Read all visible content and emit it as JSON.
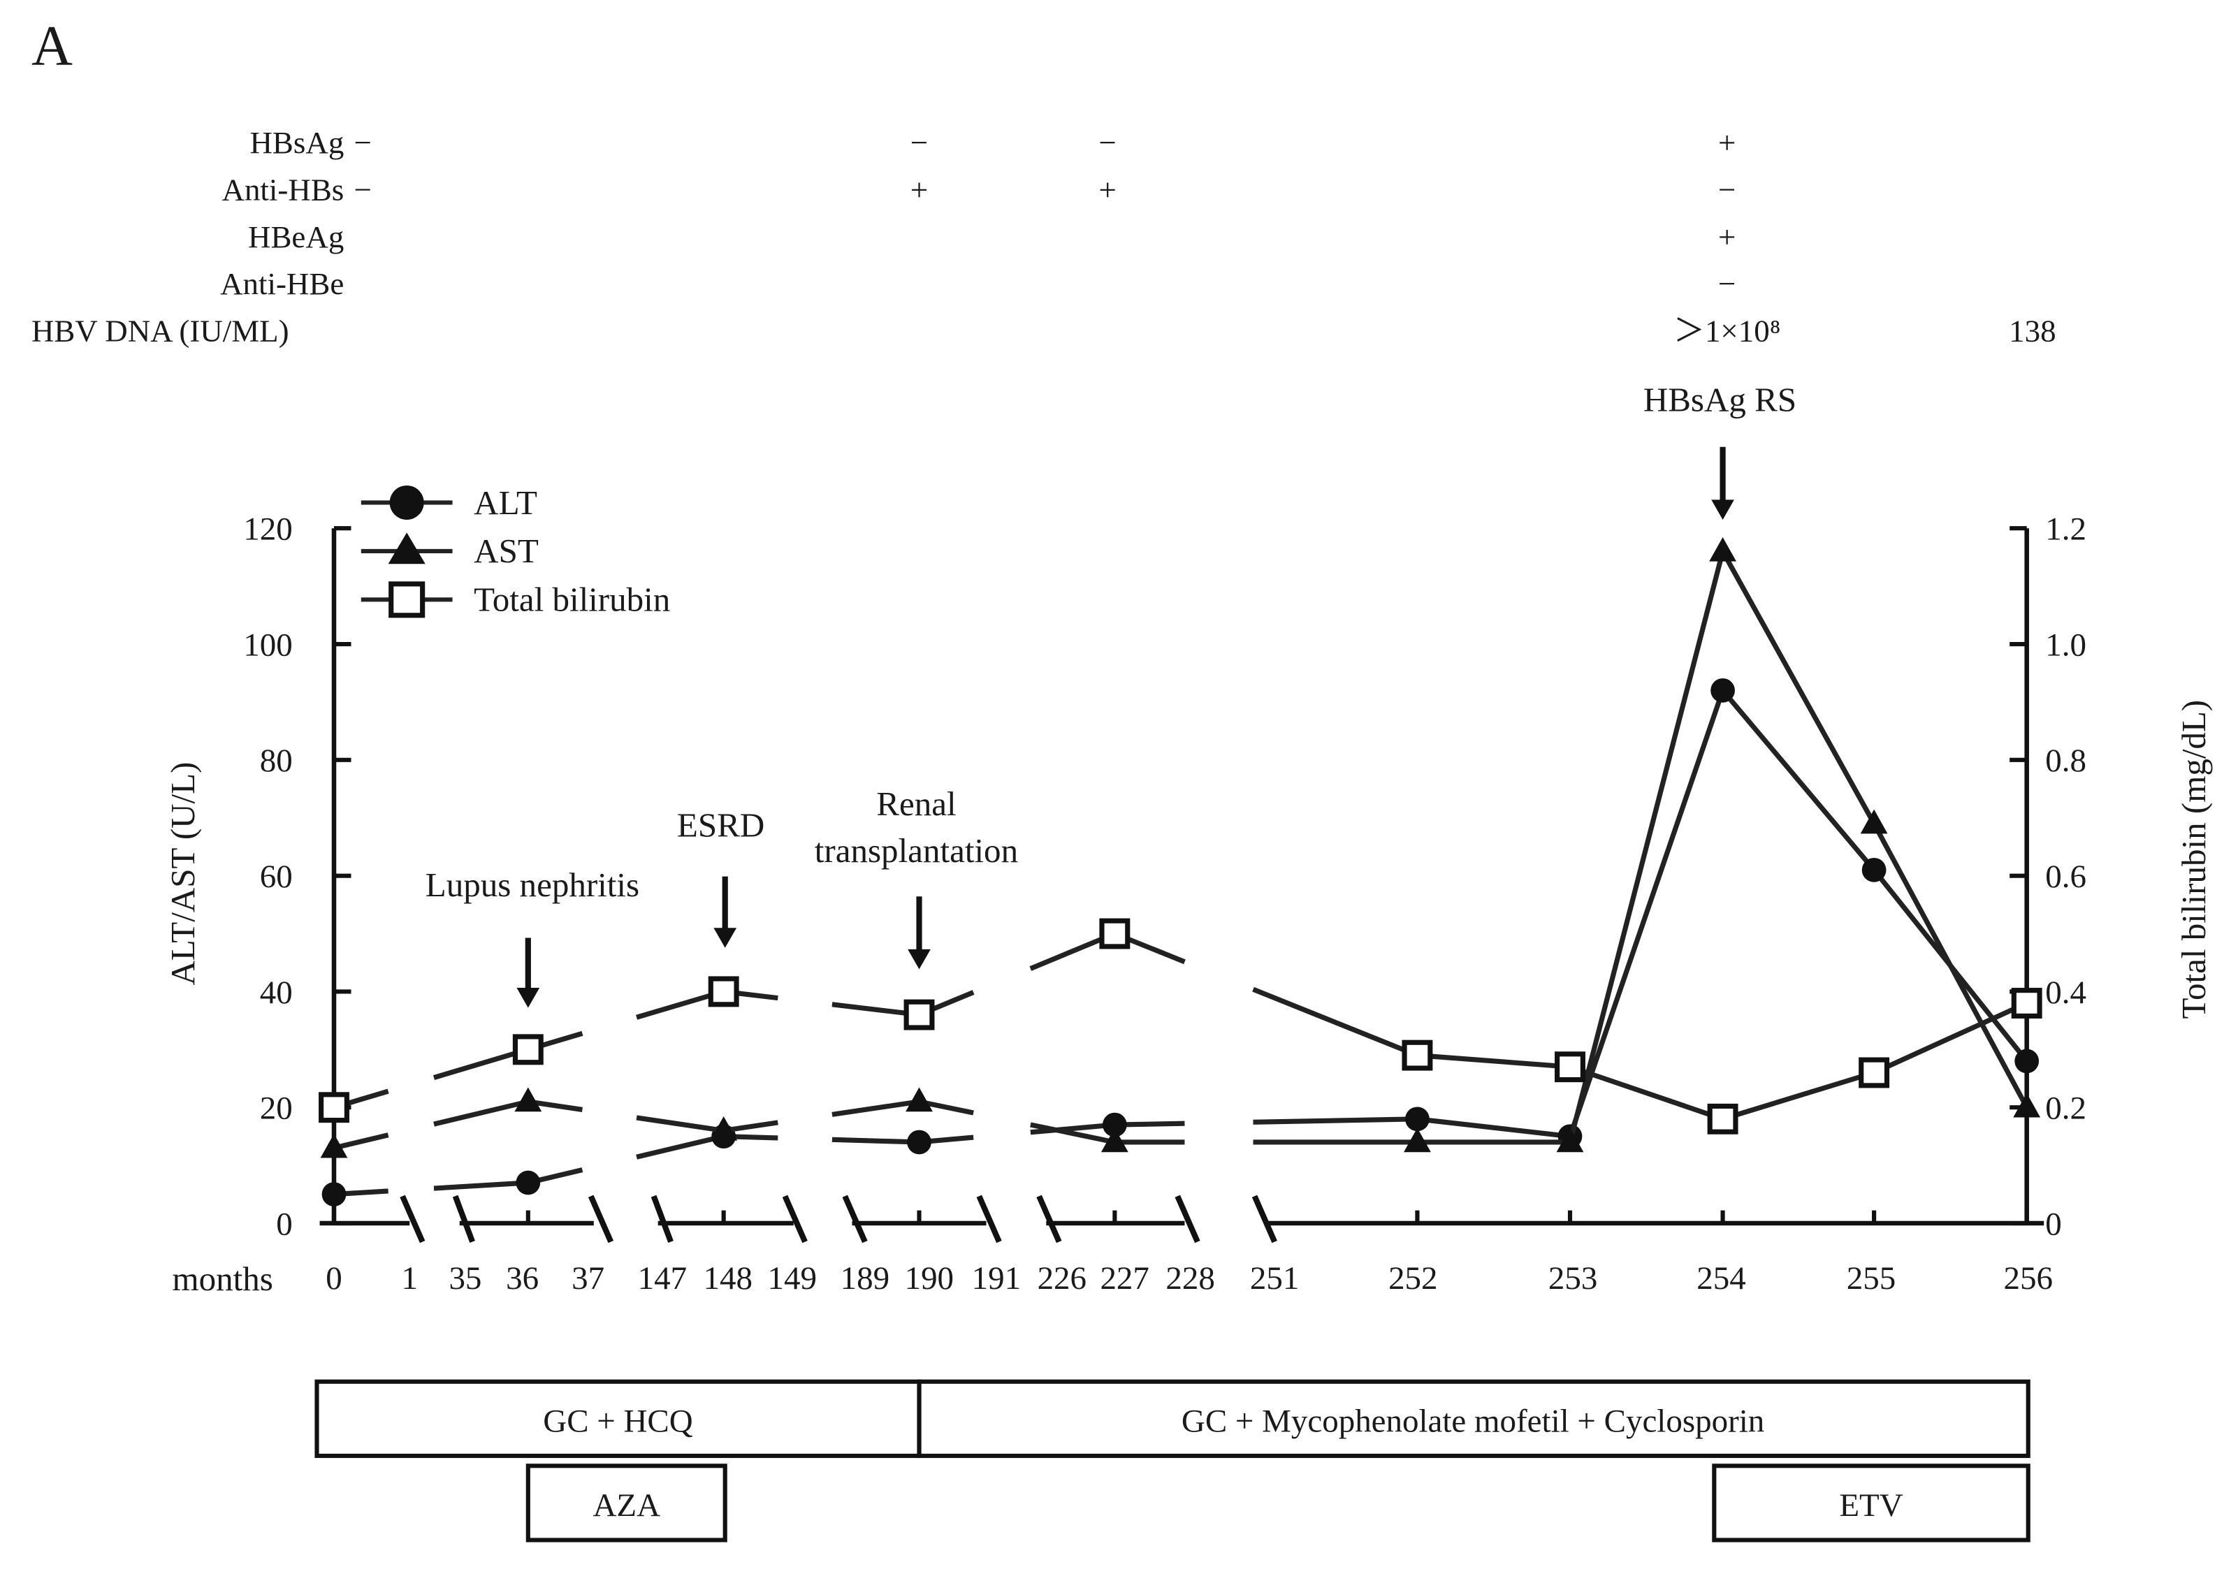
{
  "panel_label": "A",
  "serology": {
    "rows": [
      {
        "label": "HBsAg",
        "baseline": "−",
        "values": [
          "−",
          "−",
          "+",
          ""
        ]
      },
      {
        "label": "Anti-HBs",
        "baseline": "−",
        "values": [
          "+",
          "+",
          "−",
          ""
        ]
      },
      {
        "label": "HBeAg",
        "baseline": "",
        "values": [
          "",
          "",
          "+",
          ""
        ]
      },
      {
        "label": "Anti-HBe",
        "baseline": "",
        "values": [
          "",
          "",
          "−",
          ""
        ]
      },
      {
        "label": "HBV DNA (IU/ML)",
        "baseline": "",
        "values": [
          "",
          "",
          "＞1×10⁸",
          "138"
        ]
      }
    ],
    "column_months": [
      190,
      227,
      254,
      256
    ]
  },
  "annotations": [
    {
      "text": "Lupus nephritis",
      "month": 36
    },
    {
      "text": "ESRD",
      "month": 148
    },
    {
      "text": "Renal transplantation",
      "lines": [
        "Renal",
        "transplantation"
      ],
      "month": 190
    },
    {
      "text": "HBsAg RS",
      "month": 254
    }
  ],
  "chart_data": {
    "type": "line",
    "xlabel": "months",
    "ylabel": "ALT/AST (U/L)",
    "ylabel_right": "Total bilirubin (mg/dL)",
    "ylim": [
      0,
      120
    ],
    "ylim_right": [
      0,
      1.2
    ],
    "yticks": [
      "0",
      "20",
      "40",
      "60",
      "80",
      "100",
      "120"
    ],
    "yticks_right": [
      "0",
      "0.2",
      "0.4",
      "0.6",
      "0.8",
      "1.0",
      "1.2"
    ],
    "x_tick_labels": [
      "0",
      "1",
      "35",
      "36",
      "37",
      "147",
      "148",
      "149",
      "189",
      "190",
      "191",
      "226",
      "227",
      "228",
      "251",
      "252",
      "253",
      "254",
      "255",
      "256"
    ],
    "x": [
      0,
      36,
      148,
      190,
      227,
      252,
      253,
      254,
      255,
      256
    ],
    "series": [
      {
        "name": "ALT",
        "marker": "circle",
        "values": [
          5,
          7,
          15,
          14,
          17,
          18,
          15,
          92,
          61,
          28
        ]
      },
      {
        "name": "AST",
        "marker": "triangle",
        "values": [
          13,
          21,
          16,
          21,
          14,
          14,
          14,
          116,
          69,
          20
        ]
      },
      {
        "name": "Total bilirubin",
        "marker": "open-square",
        "axis": "right",
        "values": [
          0.2,
          0.3,
          0.4,
          0.36,
          0.5,
          0.29,
          0.27,
          0.18,
          0.26,
          0.38
        ]
      }
    ]
  },
  "treatments": {
    "row1": [
      {
        "label": "GC + HCQ",
        "from": 0,
        "to": 190
      },
      {
        "label": "GC + Mycophenolate mofetil + Cyclosporin",
        "from": 190,
        "to": 256
      }
    ],
    "row2": [
      {
        "label": "AZA",
        "from": 36,
        "to": 148
      },
      {
        "label": "ETV",
        "from": 254,
        "to": 256
      }
    ]
  }
}
